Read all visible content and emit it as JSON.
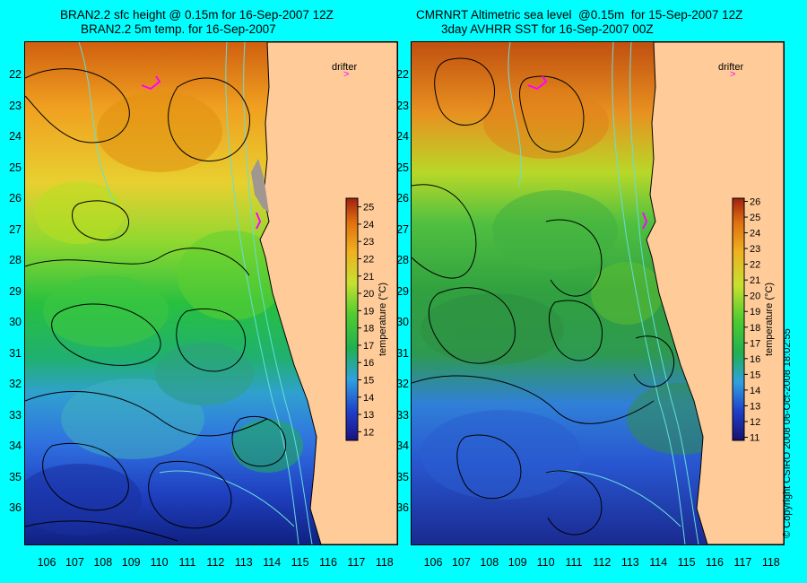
{
  "left_panel": {
    "title_line1": "BRAN2.2 sfc height @ 0.15m for 16-Sep-2007 12Z",
    "title_line2": "BRAN2.2 5m temp. for 16-Sep-2007",
    "drifter_label": "drifter",
    "colorbar": {
      "title": "temperature (°C)",
      "ticks": [
        "12",
        "13",
        "14",
        "15",
        "16",
        "17",
        "18",
        "19",
        "20",
        "21",
        "22",
        "23",
        "24",
        "25"
      ],
      "range": [
        11.5,
        25.5
      ]
    }
  },
  "right_panel": {
    "title_line1": "CMRNRT Altimetric sea level  @0.15m  for 15-Sep-2007 12Z",
    "title_line2": "3day AVHRR SST for 16-Sep-2007 00Z",
    "drifter_label": "drifter",
    "colorbar": {
      "title": "temperature (°C)",
      "ticks": [
        "11",
        "12",
        "13",
        "14",
        "15",
        "16",
        "17",
        "18",
        "19",
        "20",
        "21",
        "22",
        "23",
        "24",
        "25",
        "26"
      ],
      "range": [
        10.8,
        26.2
      ]
    }
  },
  "latitude_ticks": [
    "22",
    "23",
    "24",
    "25",
    "26",
    "27",
    "28",
    "29",
    "30",
    "31",
    "32",
    "33",
    "34",
    "35",
    "36"
  ],
  "longitude_ticks": [
    "106",
    "107",
    "108",
    "109",
    "110",
    "111",
    "112",
    "113",
    "114",
    "115",
    "116",
    "117",
    "118"
  ],
  "copyright": "© Copyright CSIRO 2008   06-Oct-2008 18:02:55",
  "colors": {
    "background": "#00ffff",
    "land": "#ffcc99",
    "coastline": "#000000",
    "bathymetry": "#66dddd",
    "drifter": "#ff00ff"
  }
}
